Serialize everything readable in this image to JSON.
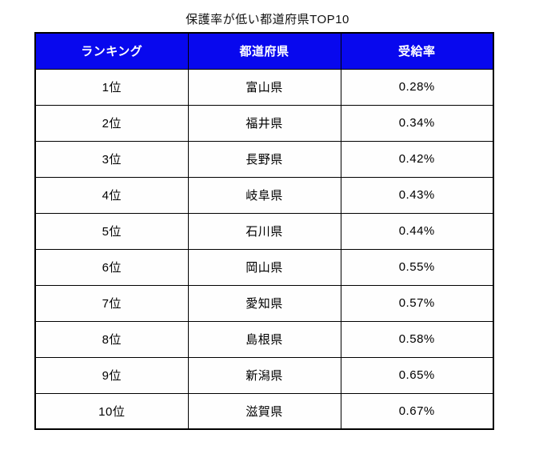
{
  "title": "保護率が低い都道府県TOP10",
  "table": {
    "headers": [
      "ランキング",
      "都道府県",
      "受給率"
    ],
    "rows": [
      {
        "rank": "1位",
        "prefecture": "富山県",
        "rate": "0.28%"
      },
      {
        "rank": "2位",
        "prefecture": "福井県",
        "rate": "0.34%"
      },
      {
        "rank": "3位",
        "prefecture": "長野県",
        "rate": "0.42%"
      },
      {
        "rank": "4位",
        "prefecture": "岐阜県",
        "rate": "0.43%"
      },
      {
        "rank": "5位",
        "prefecture": "石川県",
        "rate": "0.44%"
      },
      {
        "rank": "6位",
        "prefecture": "岡山県",
        "rate": "0.55%"
      },
      {
        "rank": "7位",
        "prefecture": "愛知県",
        "rate": "0.57%"
      },
      {
        "rank": "8位",
        "prefecture": "島根県",
        "rate": "0.58%"
      },
      {
        "rank": "9位",
        "prefecture": "新潟県",
        "rate": "0.65%"
      },
      {
        "rank": "10位",
        "prefecture": "滋賀県",
        "rate": "0.67%"
      }
    ]
  },
  "colors": {
    "header_bg": "#0808ee",
    "header_text": "#ffffff",
    "border": "#000000",
    "body_text": "#000000",
    "page_bg": "#ffffff"
  },
  "chart_data": {
    "type": "table",
    "title": "保護率が低い都道府県TOP10",
    "columns": [
      "ランキング",
      "都道府県",
      "受給率"
    ],
    "rows": [
      [
        "1位",
        "富山県",
        "0.28%"
      ],
      [
        "2位",
        "福井県",
        "0.34%"
      ],
      [
        "3位",
        "長野県",
        "0.42%"
      ],
      [
        "4位",
        "岐阜県",
        "0.43%"
      ],
      [
        "5位",
        "石川県",
        "0.44%"
      ],
      [
        "6位",
        "岡山県",
        "0.55%"
      ],
      [
        "7位",
        "愛知県",
        "0.57%"
      ],
      [
        "8位",
        "島根県",
        "0.58%"
      ],
      [
        "9位",
        "新潟県",
        "0.65%"
      ],
      [
        "10位",
        "滋賀県",
        "0.67%"
      ]
    ],
    "values_numeric_percent": [
      0.28,
      0.34,
      0.42,
      0.43,
      0.44,
      0.55,
      0.57,
      0.58,
      0.65,
      0.67
    ],
    "layout": {
      "header_fill": "#0808ee",
      "header_text_color": "#ffffff",
      "grid": "all-borders"
    }
  }
}
